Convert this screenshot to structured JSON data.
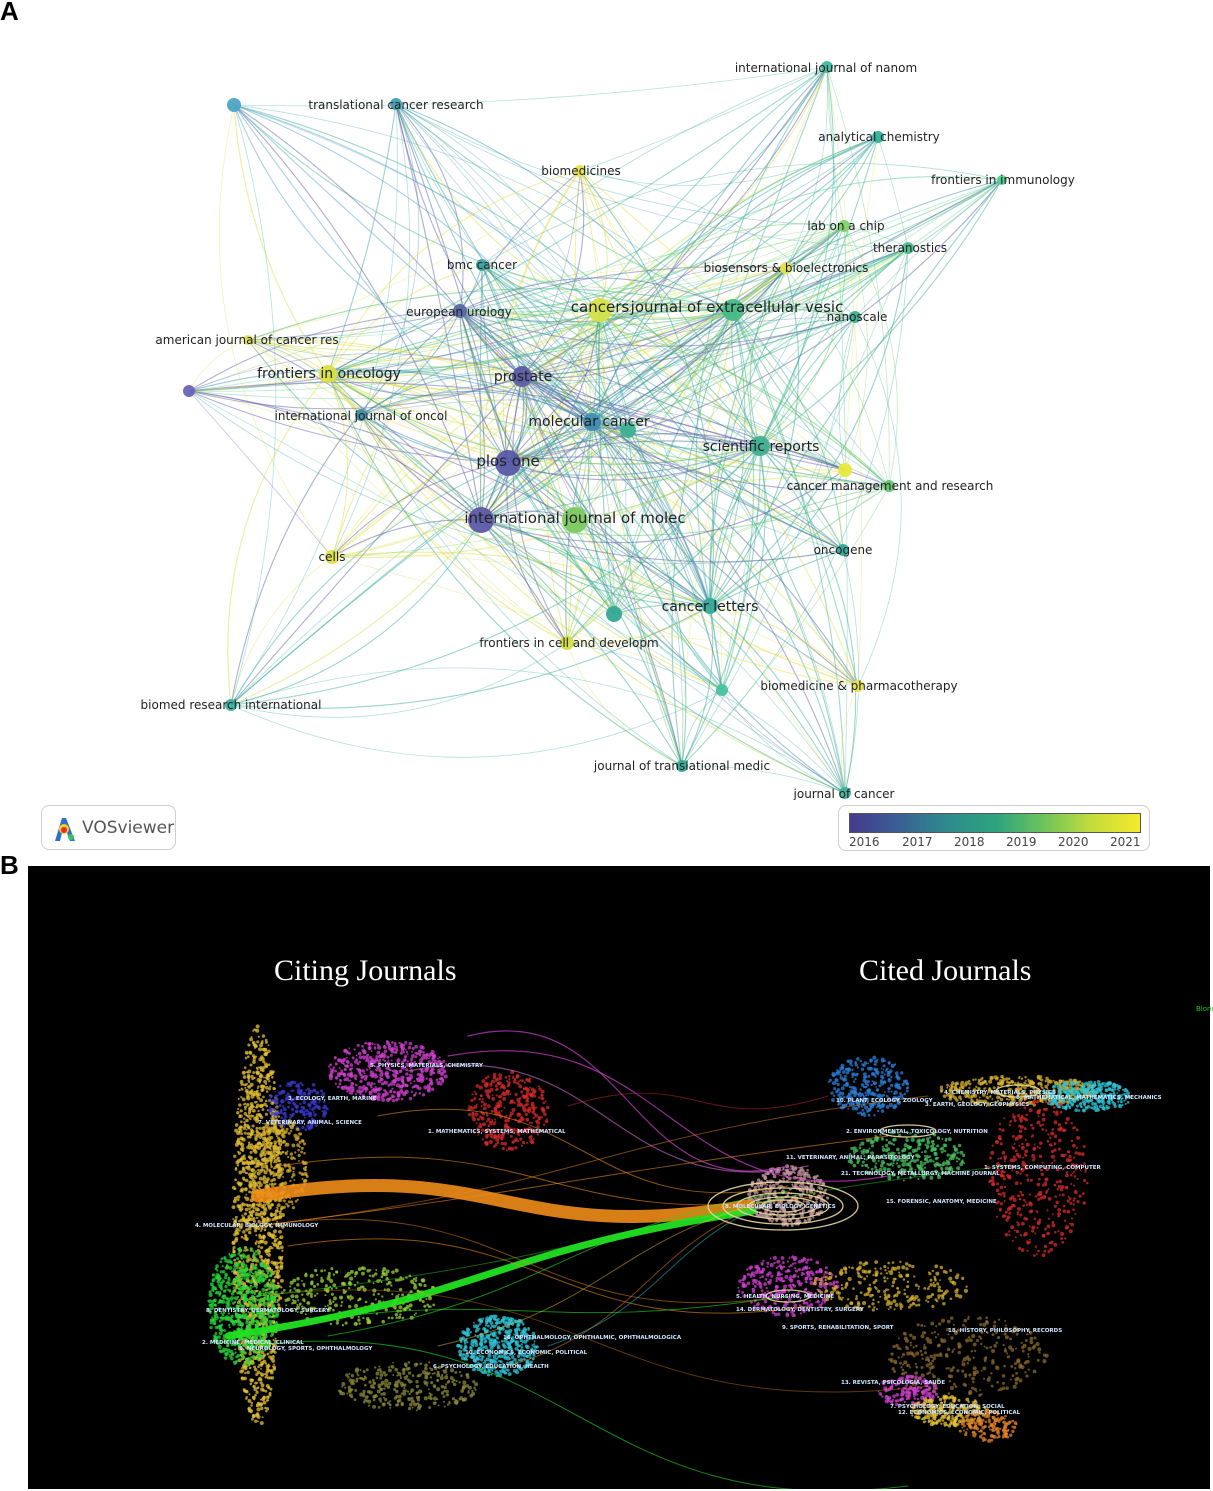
{
  "panelA": {
    "label": "A",
    "nodes": [
      {
        "label": "international journal of nanom",
        "color": "#3fb9a0"
      },
      {
        "label": "translational cancer research",
        "color": "#3fa0b0"
      },
      {
        "label": "analytical chemistry",
        "color": "#2fb09a"
      },
      {
        "label": "biomedicines",
        "color": "#e8e04a"
      },
      {
        "label": "frontiers in immunology",
        "color": "#55cc8e"
      },
      {
        "label": "lab on a chip",
        "color": "#7ed36a"
      },
      {
        "label": "theranostics",
        "color": "#4cbd8e"
      },
      {
        "label": "bmc cancer",
        "color": "#3aa2a0"
      },
      {
        "label": "biosensors & bioelectronics",
        "color": "#e5e048"
      },
      {
        "label": "cancers",
        "color": "#d6e04a"
      },
      {
        "label": "journal of extracellular vesic",
        "color": "#48b889"
      },
      {
        "label": "european urology",
        "color": "#5a66a8"
      },
      {
        "label": "nanoscale",
        "color": "#3fae90"
      },
      {
        "label": "american journal of cancer res",
        "color": "#e4e055"
      },
      {
        "label": "frontiers in oncology",
        "color": "#d9e040"
      },
      {
        "label": "prostate",
        "color": "#5e60a8"
      },
      {
        "label": "international journal of oncol",
        "color": "#3e8aa8"
      },
      {
        "label": "molecular cancer",
        "color": "#3d8db0"
      },
      {
        "label": "scientific reports",
        "color": "#40b090"
      },
      {
        "label": "plos one",
        "color": "#5a5aa8"
      },
      {
        "label": "cancer management and research",
        "color": "#62c46e"
      },
      {
        "label": "international journal of molec",
        "color": "#5c5aa6"
      },
      {
        "label": "oncogene",
        "color": "#30a898"
      },
      {
        "label": "cells",
        "color": "#dde04a"
      },
      {
        "label": "cancer letters",
        "color": "#35a898"
      },
      {
        "label": "frontiers in cell and developm",
        "color": "#d3dc45"
      },
      {
        "label": "biomedicine & pharmacotherapy",
        "color": "#e6e04a"
      },
      {
        "label": "biomed research international",
        "color": "#3ab0a0"
      },
      {
        "label": "journal of translational medic",
        "color": "#34a894"
      },
      {
        "label": "journal of cancer",
        "color": "#3cb09c"
      }
    ],
    "logo_text": "VOSviewer",
    "colorbar_ticks": [
      "2016",
      "2017",
      "2018",
      "2019",
      "2020",
      "2021"
    ]
  },
  "panelB": {
    "label": "B",
    "title_left": "Citing Journals",
    "title_right": "Cited Journals",
    "corner_text": "Blond",
    "citing_clusters": [
      "5. PHYSICS, MATERIALS, CHEMISTRY",
      "3. ECOLOGY, EARTH, MARINE",
      "7. VETERINARY, ANIMAL, SCIENCE",
      "1. MATHEMATICS, SYSTEMS, MATHEMATICAL",
      "4. MOLECULAR, BIOLOGY, IMMUNOLOGY",
      "8. DENTISTRY, DERMATOLOGY, SURGERY",
      "2. MEDICINE, MEDICAL, CLINICAL",
      "9. NEUROLOGY, SPORTS, OPHTHALMOLOGY",
      "10. ECONOMICS, ECONOMIC, POLITICAL",
      "6. PSYCHOLOGY, EDUCATION, HEALTH",
      "16. OPHTHALMOLOGY, OPHTHALMIC, OPHTHALMOLOGICA"
    ],
    "cited_clusters": [
      "4. CHEMISTRY, MATERIALS, PHYSICS",
      "10. PLANT, ECOLOGY, ZOOLOGY",
      "3. EARTH, GEOLOGY, GEOPHYSICS",
      "8. MATHEMATICAL, MATHEMATICS, MECHANICS",
      "2. ENVIRONMENTAL, TOXICOLOGY, NUTRITION",
      "11. VETERINARY, ANIMAL, PARASITOLOGY",
      "1. SYSTEMS, COMPUTING, COMPUTER",
      "21. TECHNOLOGY, METALLURGY, MACHINE JOURNAL",
      "15. FORENSIC, ANATOMY, MEDICINE",
      "8. MOLECULAR, BIOLOGY, GENETICS",
      "5. HEALTH, NURSING, MEDICINE",
      "14. DERMATOLOGY, DENTISTRY, SURGERY",
      "9. SPORTS, REHABILITATION, SPORT",
      "18. HISTORY, PHILOSOPHY, RECORDS",
      "13. REVISTA, PSICOLOGIA, SAUDE",
      "7. PSYCHOLOGY, EDUCATION, SOCIAL",
      "12. ECONOMICS, ECONOMIC, POLITICAL"
    ]
  }
}
